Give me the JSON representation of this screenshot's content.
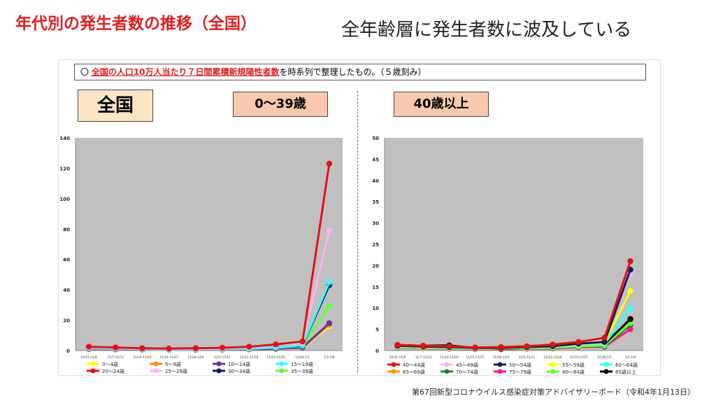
{
  "page": {
    "title": "年代別の発生者数の推移（全国）",
    "subtitle": "全年齢層に発生者数に波及している",
    "note_prefix": "〇 ",
    "note_highlight": "全国の人口10万人当たり７日間累積新規陽性者数",
    "note_suffix": "を時系列で整理したもの。（５歳刻み）",
    "box_all": "全国",
    "box_young": "0～39歳",
    "box_old": "40歳以上",
    "footer": "第67回新型コロナウイルス感染症対策アドバイザリーボード（令和4年1月13日）"
  },
  "chart_data": [
    {
      "type": "line",
      "title": "0～39歳",
      "categories": [
        "10/31-11/6",
        "11/7-11/13",
        "11/14-11/20",
        "11/21-11/27",
        "11/28-12/4",
        "12/5-12/11",
        "12/12-12/18",
        "12/19-12/25",
        "12/26-1/1",
        "1/2-1/8"
      ],
      "ylim": [
        0,
        140
      ],
      "yticks": [
        0,
        20,
        40,
        60,
        80,
        100,
        120,
        140
      ],
      "grid": false,
      "legend": "bottom",
      "series": [
        {
          "name": "0～4歳",
          "color": "#ffff00",
          "values": [
            1.0,
            0.8,
            0.6,
            0.5,
            0.6,
            0.7,
            0.8,
            1.2,
            2.0,
            16.0
          ]
        },
        {
          "name": "5～9歳",
          "color": "#ff8c1a",
          "values": [
            1.2,
            0.9,
            0.7,
            0.6,
            0.6,
            0.7,
            0.9,
            1.3,
            2.2,
            17.0
          ]
        },
        {
          "name": "10～14歳",
          "color": "#7030a0",
          "values": [
            1.0,
            0.8,
            0.6,
            0.5,
            0.5,
            0.6,
            0.8,
            1.2,
            2.0,
            18.0
          ]
        },
        {
          "name": "15～19歳",
          "color": "#33ffff",
          "values": [
            1.5,
            1.2,
            0.9,
            0.7,
            0.8,
            0.9,
            1.2,
            2.0,
            3.5,
            45.0
          ]
        },
        {
          "name": "20～24歳",
          "color": "#e81010",
          "values": [
            2.5,
            2.0,
            1.5,
            1.3,
            1.5,
            1.8,
            2.5,
            4.0,
            6.0,
            123.0
          ]
        },
        {
          "name": "25～29歳",
          "color": "#ffb3ec",
          "values": [
            2.0,
            1.6,
            1.3,
            1.1,
            1.2,
            1.4,
            2.0,
            3.5,
            5.0,
            79.0
          ]
        },
        {
          "name": "30～34歳",
          "color": "#0a1f5c",
          "values": [
            1.5,
            1.2,
            1.0,
            0.8,
            0.9,
            1.0,
            1.4,
            2.2,
            3.2,
            43.0
          ]
        },
        {
          "name": "35～39歳",
          "color": "#66ff33",
          "values": [
            1.4,
            1.1,
            0.9,
            0.7,
            0.8,
            0.9,
            1.2,
            2.0,
            2.8,
            29.0
          ]
        }
      ]
    },
    {
      "type": "line",
      "title": "40歳以上",
      "categories": [
        "10/31-11/6",
        "11/7-11/13",
        "11/14-11/20",
        "11/21-11/27",
        "11/28-12/4",
        "12/5-12/11",
        "12/12-12/18",
        "12/19-12/25",
        "12/26-1/1",
        "1/2-1/8"
      ],
      "ylim": [
        0,
        50
      ],
      "yticks": [
        0,
        5,
        10,
        15,
        20,
        25,
        30,
        35,
        40,
        45,
        50
      ],
      "grid": false,
      "legend": "bottom",
      "series": [
        {
          "name": "40～44歳",
          "color": "#e81010",
          "values": [
            1.3,
            1.1,
            1.0,
            0.7,
            0.8,
            1.0,
            1.4,
            2.0,
            3.0,
            21.0
          ]
        },
        {
          "name": "45～49歳",
          "color": "#ffb3ec",
          "values": [
            1.2,
            1.0,
            0.9,
            0.6,
            0.7,
            0.9,
            1.2,
            1.8,
            2.5,
            18.0
          ]
        },
        {
          "name": "50～54歳",
          "color": "#0a1f5c",
          "values": [
            1.1,
            0.9,
            0.8,
            0.6,
            0.6,
            0.8,
            1.0,
            1.6,
            2.0,
            19.0
          ]
        },
        {
          "name": "55～59歳",
          "color": "#ffff00",
          "values": [
            1.0,
            0.8,
            0.7,
            0.5,
            0.5,
            0.7,
            0.9,
            1.4,
            1.8,
            14.0
          ]
        },
        {
          "name": "60～64歳",
          "color": "#33ffff",
          "values": [
            0.9,
            0.7,
            0.6,
            0.4,
            0.5,
            0.6,
            0.8,
            1.2,
            1.5,
            10.0
          ]
        },
        {
          "name": "65～69歳",
          "color": "#ff9900",
          "values": [
            0.8,
            0.6,
            0.5,
            0.4,
            0.4,
            0.5,
            0.7,
            1.0,
            1.2,
            6.5
          ]
        },
        {
          "name": "70～74歳",
          "color": "#1e8c1e",
          "values": [
            0.8,
            0.6,
            0.5,
            0.4,
            0.4,
            0.5,
            0.6,
            0.9,
            1.0,
            6.0
          ]
        },
        {
          "name": "75～79歳",
          "color": "#ff1493",
          "values": [
            0.7,
            0.5,
            0.4,
            0.3,
            0.3,
            0.4,
            0.5,
            0.8,
            0.9,
            5.0
          ]
        },
        {
          "name": "80～84歳",
          "color": "#66ff33",
          "values": [
            0.8,
            0.6,
            0.5,
            0.4,
            0.4,
            0.5,
            0.7,
            1.0,
            1.2,
            6.5
          ]
        },
        {
          "name": "85歳以上",
          "color": "#000000",
          "values": [
            1.3,
            1.1,
            1.2,
            0.6,
            0.4,
            0.6,
            0.9,
            1.6,
            1.5,
            7.4
          ]
        }
      ]
    }
  ]
}
